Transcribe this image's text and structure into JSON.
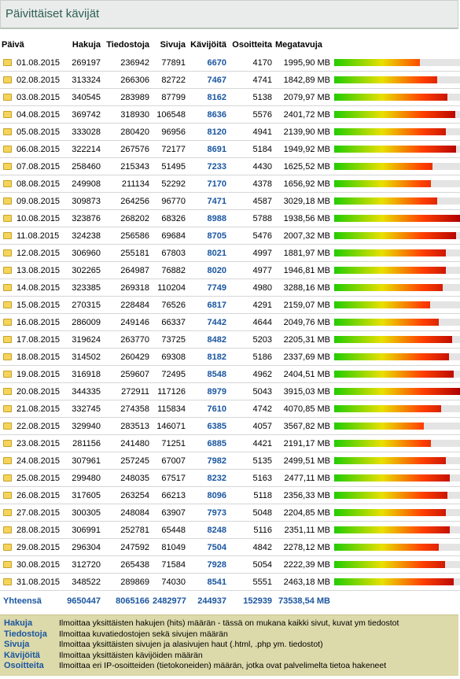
{
  "title": "Päivittäiset kävijät",
  "headers": [
    "Päivä",
    "Hakuja",
    "Tiedostoja",
    "Sivuja",
    "Kävijöitä",
    "Osoitteita",
    "Megatavuja"
  ],
  "rows": [
    {
      "date": "01.08.2015",
      "hits": "269197",
      "files": "236942",
      "pages": "77891",
      "visits": "6670",
      "sites": "4170",
      "mb": "1995,90 MB",
      "level": 0.68
    },
    {
      "date": "02.08.2015",
      "hits": "313324",
      "files": "266306",
      "pages": "82722",
      "visits": "7467",
      "sites": "4741",
      "mb": "1842,89 MB",
      "level": 0.82
    },
    {
      "date": "03.08.2015",
      "hits": "340545",
      "files": "283989",
      "pages": "87799",
      "visits": "8162",
      "sites": "5138",
      "mb": "2079,97 MB",
      "level": 0.9
    },
    {
      "date": "04.08.2015",
      "hits": "369742",
      "files": "318930",
      "pages": "106548",
      "visits": "8636",
      "sites": "5576",
      "mb": "2401,72 MB",
      "level": 0.96
    },
    {
      "date": "05.08.2015",
      "hits": "333028",
      "files": "280420",
      "pages": "96956",
      "visits": "8120",
      "sites": "4941",
      "mb": "2139,90 MB",
      "level": 0.89
    },
    {
      "date": "06.08.2015",
      "hits": "322214",
      "files": "267576",
      "pages": "72177",
      "visits": "8691",
      "sites": "5184",
      "mb": "1949,92 MB",
      "level": 0.97
    },
    {
      "date": "07.08.2015",
      "hits": "258460",
      "files": "215343",
      "pages": "51495",
      "visits": "7233",
      "sites": "4430",
      "mb": "1625,52 MB",
      "level": 0.78
    },
    {
      "date": "08.08.2015",
      "hits": "249908",
      "files": "211134",
      "pages": "52292",
      "visits": "7170",
      "sites": "4378",
      "mb": "1656,92 MB",
      "level": 0.77
    },
    {
      "date": "09.08.2015",
      "hits": "309873",
      "files": "264256",
      "pages": "96770",
      "visits": "7471",
      "sites": "4587",
      "mb": "3029,18 MB",
      "level": 0.82
    },
    {
      "date": "10.08.2015",
      "hits": "323876",
      "files": "268202",
      "pages": "68326",
      "visits": "8988",
      "sites": "5788",
      "mb": "1938,56 MB",
      "level": 1.0
    },
    {
      "date": "11.08.2015",
      "hits": "324238",
      "files": "256586",
      "pages": "69684",
      "visits": "8705",
      "sites": "5476",
      "mb": "2007,32 MB",
      "level": 0.97
    },
    {
      "date": "12.08.2015",
      "hits": "306960",
      "files": "255181",
      "pages": "67803",
      "visits": "8021",
      "sites": "4997",
      "mb": "1881,97 MB",
      "level": 0.89
    },
    {
      "date": "13.08.2015",
      "hits": "302265",
      "files": "264987",
      "pages": "76882",
      "visits": "8020",
      "sites": "4977",
      "mb": "1946,81 MB",
      "level": 0.89
    },
    {
      "date": "14.08.2015",
      "hits": "323385",
      "files": "269318",
      "pages": "110204",
      "visits": "7749",
      "sites": "4980",
      "mb": "3288,16 MB",
      "level": 0.86
    },
    {
      "date": "15.08.2015",
      "hits": "270315",
      "files": "228484",
      "pages": "76526",
      "visits": "6817",
      "sites": "4291",
      "mb": "2159,07 MB",
      "level": 0.76
    },
    {
      "date": "16.08.2015",
      "hits": "286009",
      "files": "249146",
      "pages": "66337",
      "visits": "7442",
      "sites": "4644",
      "mb": "2049,76 MB",
      "level": 0.83
    },
    {
      "date": "17.08.2015",
      "hits": "319624",
      "files": "263770",
      "pages": "73725",
      "visits": "8482",
      "sites": "5203",
      "mb": "2205,31 MB",
      "level": 0.94
    },
    {
      "date": "18.08.2015",
      "hits": "314502",
      "files": "260429",
      "pages": "69308",
      "visits": "8182",
      "sites": "5186",
      "mb": "2337,69 MB",
      "level": 0.91
    },
    {
      "date": "19.08.2015",
      "hits": "316918",
      "files": "259607",
      "pages": "72495",
      "visits": "8548",
      "sites": "4962",
      "mb": "2404,51 MB",
      "level": 0.95
    },
    {
      "date": "20.08.2015",
      "hits": "344335",
      "files": "272911",
      "pages": "117126",
      "visits": "8979",
      "sites": "5043",
      "mb": "3915,03 MB",
      "level": 1.0
    },
    {
      "date": "21.08.2015",
      "hits": "332745",
      "files": "274358",
      "pages": "115834",
      "visits": "7610",
      "sites": "4742",
      "mb": "4070,85 MB",
      "level": 0.85
    },
    {
      "date": "22.08.2015",
      "hits": "329940",
      "files": "283513",
      "pages": "146071",
      "visits": "6385",
      "sites": "4057",
      "mb": "3567,82 MB",
      "level": 0.71
    },
    {
      "date": "23.08.2015",
      "hits": "281156",
      "files": "241480",
      "pages": "71251",
      "visits": "6885",
      "sites": "4421",
      "mb": "2191,17 MB",
      "level": 0.77
    },
    {
      "date": "24.08.2015",
      "hits": "307961",
      "files": "257245",
      "pages": "67007",
      "visits": "7982",
      "sites": "5135",
      "mb": "2499,51 MB",
      "level": 0.89
    },
    {
      "date": "25.08.2015",
      "hits": "299480",
      "files": "248035",
      "pages": "67517",
      "visits": "8232",
      "sites": "5163",
      "mb": "2477,11 MB",
      "level": 0.92
    },
    {
      "date": "26.08.2015",
      "hits": "317605",
      "files": "263254",
      "pages": "66213",
      "visits": "8096",
      "sites": "5118",
      "mb": "2356,33 MB",
      "level": 0.9
    },
    {
      "date": "27.08.2015",
      "hits": "300305",
      "files": "248084",
      "pages": "63907",
      "visits": "7973",
      "sites": "5048",
      "mb": "2204,85 MB",
      "level": 0.89
    },
    {
      "date": "28.08.2015",
      "hits": "306991",
      "files": "252781",
      "pages": "65448",
      "visits": "8248",
      "sites": "5116",
      "mb": "2351,11 MB",
      "level": 0.92
    },
    {
      "date": "29.08.2015",
      "hits": "296304",
      "files": "247592",
      "pages": "81049",
      "visits": "7504",
      "sites": "4842",
      "mb": "2278,12 MB",
      "level": 0.83
    },
    {
      "date": "30.08.2015",
      "hits": "312720",
      "files": "265438",
      "pages": "71584",
      "visits": "7928",
      "sites": "5054",
      "mb": "2222,39 MB",
      "level": 0.88
    },
    {
      "date": "31.08.2015",
      "hits": "348522",
      "files": "289869",
      "pages": "74030",
      "visits": "8541",
      "sites": "5551",
      "mb": "2463,18 MB",
      "level": 0.95
    }
  ],
  "totals": {
    "label": "Yhteensä",
    "hits": "9650447",
    "files": "8065166",
    "pages": "2482977",
    "visits": "244937",
    "sites": "152939",
    "mb": "73538,54 MB"
  },
  "legend": [
    {
      "term": "Hakuja",
      "desc": "Ilmoittaa yksittäisten hakujen (hits) määrän - tässä on mukana kaikki sivut, kuvat ym tiedostot"
    },
    {
      "term": "Tiedostoja",
      "desc": "Ilmoittaa kuvatiedostojen sekä sivujen määrän"
    },
    {
      "term": "Sivuja",
      "desc": "Ilmoittaa yksittäisten sivujen ja alasivujen haut (.html, .php ym. tiedostot)"
    },
    {
      "term": "Kävijöitä",
      "desc": "Ilmoittaa yksittäisten kävijöiden määrän"
    },
    {
      "term": "Osoitteita",
      "desc": "Ilmoittaa eri IP-osoitteiden (tietokoneiden) määrän, jotka ovat palvelimelta tietoa hakeneet"
    }
  ],
  "colors": {
    "accent": "#1a56a0",
    "bar_green": "#22cc00",
    "bar_yellow": "#e8e000",
    "bar_red": "#b00000",
    "legend_bg": "#dcd9aa"
  }
}
